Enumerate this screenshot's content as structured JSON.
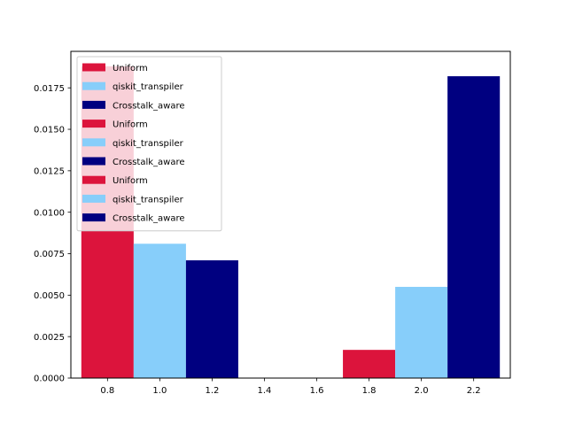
{
  "chart_data": {
    "type": "bar",
    "title": "",
    "xlabel": "",
    "ylabel": "",
    "xlim": [
      0.66,
      2.34
    ],
    "ylim": [
      0,
      0.0197
    ],
    "grid": false,
    "legend_placement": "top-left",
    "bar_width": 0.2,
    "xticks": [
      "0.8",
      "1.0",
      "1.2",
      "1.4",
      "1.6",
      "1.8",
      "2.0",
      "2.2"
    ],
    "xtick_values": [
      0.8,
      1.0,
      1.2,
      1.4,
      1.6,
      1.8,
      2.0,
      2.2
    ],
    "yticks": [
      "0.0000",
      "0.0025",
      "0.0050",
      "0.0075",
      "0.0100",
      "0.0125",
      "0.0150",
      "0.0175"
    ],
    "ytick_values": [
      0,
      0.0025,
      0.005,
      0.0075,
      0.01,
      0.0125,
      0.015,
      0.0175
    ],
    "series": [
      {
        "name": "Uniform",
        "color": "#dc143c",
        "x": [
          0.8,
          1.8
        ],
        "values": [
          0.0188,
          0.0017
        ]
      },
      {
        "name": "qiskit_transpiler",
        "color": "#87cefa",
        "x": [
          1.0,
          2.0
        ],
        "values": [
          0.0081,
          0.0055
        ]
      },
      {
        "name": "Crosstalk_aware",
        "color": "#000080",
        "x": [
          1.2,
          2.2
        ],
        "values": [
          0.0071,
          0.0182
        ]
      }
    ],
    "legend_entries": [
      {
        "label": "Uniform",
        "color": "#dc143c"
      },
      {
        "label": "qiskit_transpiler",
        "color": "#87cefa"
      },
      {
        "label": "Crosstalk_aware",
        "color": "#000080"
      },
      {
        "label": "Uniform",
        "color": "#dc143c"
      },
      {
        "label": "qiskit_transpiler",
        "color": "#87cefa"
      },
      {
        "label": "Crosstalk_aware",
        "color": "#000080"
      },
      {
        "label": "Uniform",
        "color": "#dc143c"
      },
      {
        "label": "qiskit_transpiler",
        "color": "#87cefa"
      },
      {
        "label": "Crosstalk_aware",
        "color": "#000080"
      }
    ]
  }
}
